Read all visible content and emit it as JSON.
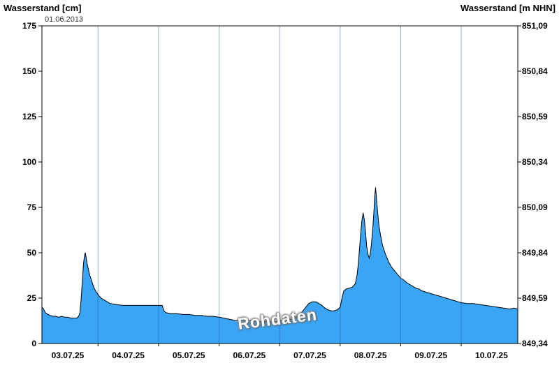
{
  "annotations": {
    "timestamp": "01.06.2013",
    "watermark": "Rohdaten"
  },
  "chart_data": {
    "type": "area",
    "title": "",
    "x_axis": {
      "tick_labels": [
        "03.07.25",
        "04.07.25",
        "05.07.25",
        "06.07.25",
        "07.07.25",
        "08.07.25",
        "09.07.25",
        "10.07.25"
      ],
      "label_positions_days": [
        0.5,
        1.5,
        2.5,
        3.5,
        4.5,
        5.5,
        6.5,
        7.5
      ],
      "gridline_positions_days": [
        1,
        2,
        3,
        4,
        5,
        6,
        7
      ],
      "range_days": [
        0.073,
        7.934
      ],
      "epoch": "days since 03.07.25 00:00"
    },
    "y_left": {
      "title": "Wasserstand [cm]",
      "ticks": [
        0,
        25,
        50,
        75,
        100,
        125,
        150,
        175
      ],
      "range": [
        0,
        175
      ]
    },
    "y_right": {
      "title": "Wasserstand [m NHN]",
      "tick_labels": [
        "849,34",
        "849,59",
        "849,84",
        "850,09",
        "850,34",
        "850,59",
        "850,84",
        "851,09"
      ]
    },
    "legend": "off",
    "grid": "vertical-only",
    "colors": {
      "fill": "#3aa5f5",
      "line": "#000000",
      "grid": "#1c4f8a",
      "frame": "#000000"
    },
    "series": [
      {
        "name": "Rohdaten",
        "unit": "cm",
        "points": [
          [
            0.073,
            20
          ],
          [
            0.1,
            19
          ],
          [
            0.13,
            17
          ],
          [
            0.17,
            16
          ],
          [
            0.21,
            15.5
          ],
          [
            0.25,
            15
          ],
          [
            0.3,
            15
          ],
          [
            0.35,
            14.5
          ],
          [
            0.4,
            15
          ],
          [
            0.45,
            14.5
          ],
          [
            0.5,
            14.5
          ],
          [
            0.55,
            14
          ],
          [
            0.6,
            14
          ],
          [
            0.65,
            14
          ],
          [
            0.68,
            15
          ],
          [
            0.7,
            17
          ],
          [
            0.72,
            24
          ],
          [
            0.74,
            34
          ],
          [
            0.76,
            44
          ],
          [
            0.78,
            49
          ],
          [
            0.79,
            50
          ],
          [
            0.8,
            48
          ],
          [
            0.82,
            44
          ],
          [
            0.84,
            41
          ],
          [
            0.86,
            38
          ],
          [
            0.88,
            36
          ],
          [
            0.9,
            34
          ],
          [
            0.93,
            31
          ],
          [
            0.96,
            29
          ],
          [
            1.0,
            27
          ],
          [
            1.05,
            25
          ],
          [
            1.1,
            24
          ],
          [
            1.15,
            23
          ],
          [
            1.2,
            22
          ],
          [
            1.3,
            21.5
          ],
          [
            1.4,
            21
          ],
          [
            1.5,
            21
          ],
          [
            1.6,
            21
          ],
          [
            1.7,
            21
          ],
          [
            1.8,
            21
          ],
          [
            1.9,
            21
          ],
          [
            2.0,
            21
          ],
          [
            2.06,
            21
          ],
          [
            2.09,
            18
          ],
          [
            2.12,
            17
          ],
          [
            2.2,
            16.5
          ],
          [
            2.3,
            16.5
          ],
          [
            2.4,
            16
          ],
          [
            2.5,
            16
          ],
          [
            2.6,
            15.5
          ],
          [
            2.7,
            15.5
          ],
          [
            2.8,
            15
          ],
          [
            2.9,
            15
          ],
          [
            3.0,
            14.5
          ],
          [
            3.08,
            14
          ],
          [
            3.15,
            13.5
          ],
          [
            3.22,
            13
          ],
          [
            3.28,
            12.5
          ],
          [
            3.33,
            13
          ],
          [
            3.4,
            13
          ],
          [
            3.5,
            12.5
          ],
          [
            3.6,
            12.5
          ],
          [
            3.7,
            12
          ],
          [
            3.8,
            12
          ],
          [
            3.9,
            12
          ],
          [
            4.0,
            12.5
          ],
          [
            4.1,
            13
          ],
          [
            4.2,
            13.5
          ],
          [
            4.3,
            15
          ],
          [
            4.36,
            17
          ],
          [
            4.42,
            19.5
          ],
          [
            4.48,
            22
          ],
          [
            4.54,
            23
          ],
          [
            4.6,
            23
          ],
          [
            4.65,
            22
          ],
          [
            4.7,
            21
          ],
          [
            4.75,
            19.5
          ],
          [
            4.8,
            18.5
          ],
          [
            4.85,
            18
          ],
          [
            4.9,
            18
          ],
          [
            4.95,
            18.5
          ],
          [
            5.0,
            20
          ],
          [
            5.03,
            25
          ],
          [
            5.06,
            29
          ],
          [
            5.1,
            30
          ],
          [
            5.15,
            30.5
          ],
          [
            5.2,
            31
          ],
          [
            5.25,
            33
          ],
          [
            5.28,
            38
          ],
          [
            5.3,
            44
          ],
          [
            5.32,
            52
          ],
          [
            5.34,
            61
          ],
          [
            5.36,
            68
          ],
          [
            5.38,
            72
          ],
          [
            5.4,
            68
          ],
          [
            5.42,
            61
          ],
          [
            5.44,
            53
          ],
          [
            5.46,
            49
          ],
          [
            5.48,
            47
          ],
          [
            5.5,
            50
          ],
          [
            5.52,
            56
          ],
          [
            5.54,
            64
          ],
          [
            5.56,
            74
          ],
          [
            5.57,
            81
          ],
          [
            5.585,
            86
          ],
          [
            5.6,
            80
          ],
          [
            5.62,
            72
          ],
          [
            5.64,
            65
          ],
          [
            5.67,
            59
          ],
          [
            5.7,
            54
          ],
          [
            5.75,
            49
          ],
          [
            5.8,
            45
          ],
          [
            5.85,
            42
          ],
          [
            5.9,
            40
          ],
          [
            5.95,
            38
          ],
          [
            6.0,
            36
          ],
          [
            6.05,
            35
          ],
          [
            6.1,
            33.5
          ],
          [
            6.15,
            32.5
          ],
          [
            6.2,
            31.5
          ],
          [
            6.25,
            30.5
          ],
          [
            6.3,
            30
          ],
          [
            6.35,
            29
          ],
          [
            6.4,
            28.5
          ],
          [
            6.45,
            28
          ],
          [
            6.5,
            27.5
          ],
          [
            6.55,
            27
          ],
          [
            6.6,
            26.5
          ],
          [
            6.65,
            26
          ],
          [
            6.7,
            25.5
          ],
          [
            6.75,
            25
          ],
          [
            6.8,
            24.5
          ],
          [
            6.85,
            24
          ],
          [
            6.9,
            23.5
          ],
          [
            6.95,
            23
          ],
          [
            7.0,
            22.5
          ],
          [
            7.1,
            22
          ],
          [
            7.2,
            22
          ],
          [
            7.3,
            21.5
          ],
          [
            7.4,
            21
          ],
          [
            7.5,
            20.5
          ],
          [
            7.6,
            20
          ],
          [
            7.7,
            19.5
          ],
          [
            7.8,
            19
          ],
          [
            7.87,
            19.5
          ],
          [
            7.934,
            19
          ]
        ]
      }
    ]
  }
}
